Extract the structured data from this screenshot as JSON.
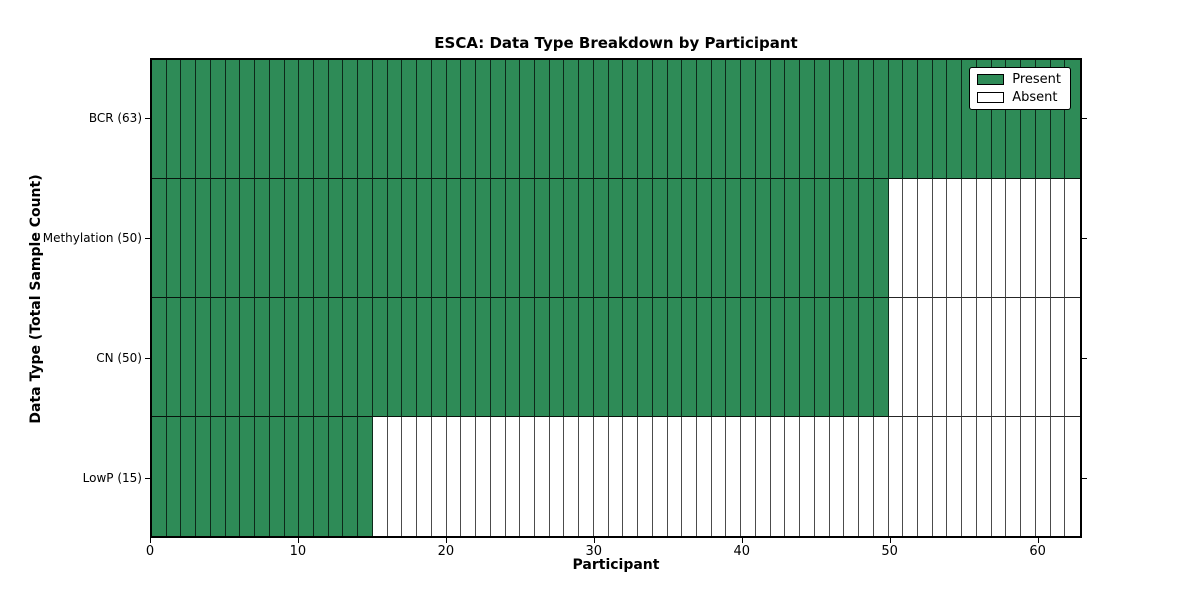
{
  "chart_data": {
    "type": "heatmap",
    "title": "ESCA: Data Type Breakdown by Participant",
    "xlabel": "Participant",
    "ylabel": "Data Type (Total Sample Count)",
    "n_participants": 63,
    "xlim": [
      0,
      63
    ],
    "x_ticks": [
      0,
      10,
      20,
      30,
      40,
      50,
      60
    ],
    "rows": [
      {
        "label": "BCR (63)",
        "data_type": "BCR",
        "total_sample_count": 63,
        "present_count": 63,
        "absent_count": 0
      },
      {
        "label": "Methylation (50)",
        "data_type": "Methylation",
        "total_sample_count": 50,
        "present_count": 50,
        "absent_count": 13
      },
      {
        "label": "CN (50)",
        "data_type": "CN",
        "total_sample_count": 50,
        "present_count": 50,
        "absent_count": 13
      },
      {
        "label": "LowP (15)",
        "data_type": "LowP",
        "total_sample_count": 15,
        "present_count": 15,
        "absent_count": 48
      }
    ],
    "legend": [
      {
        "label": "Present",
        "color": "#2e8b57"
      },
      {
        "label": "Absent",
        "color": "#ffffff"
      }
    ],
    "colors": {
      "present": "#2e8b57",
      "absent": "#ffffff",
      "cell_border": "#1a1a1a",
      "spine": "#000000"
    },
    "legend_position": "upper right",
    "grid": "cell-borders"
  }
}
